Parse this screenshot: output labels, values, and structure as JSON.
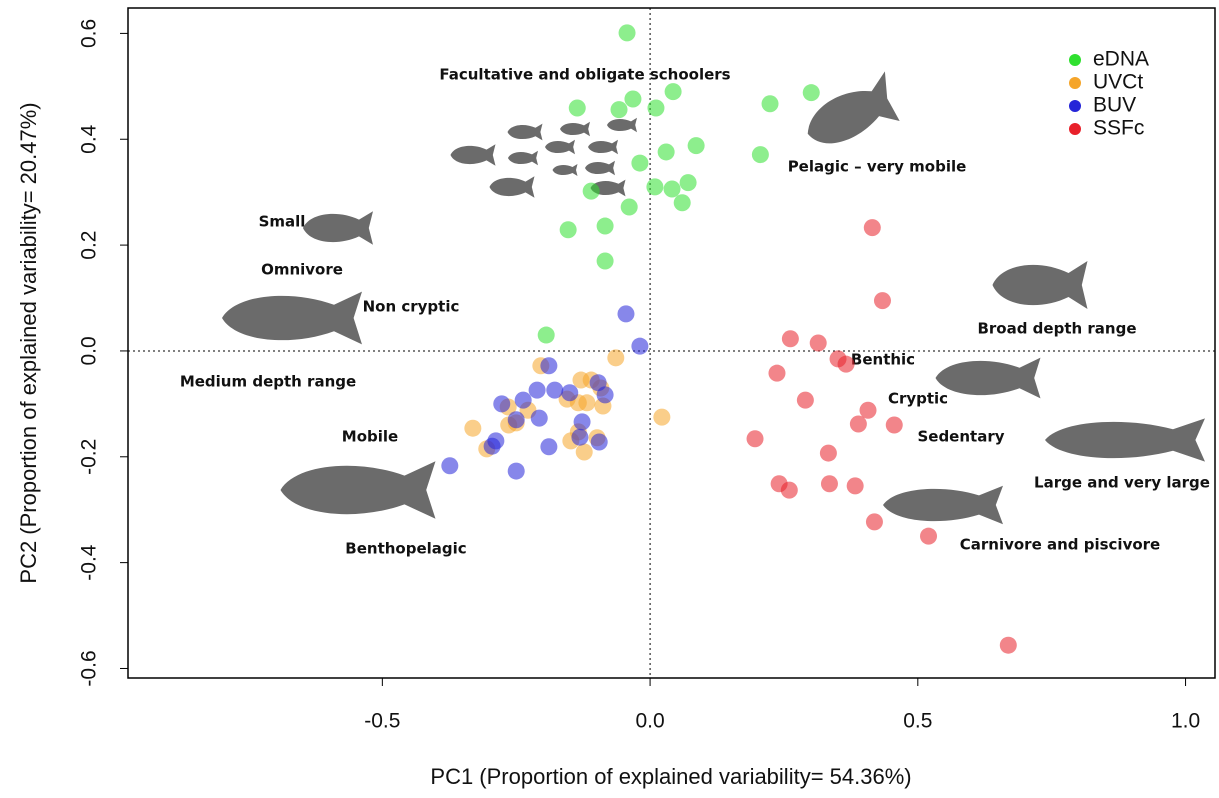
{
  "chart_data": {
    "type": "scatter",
    "x_label": "PC1 (Proportion of explained variability= 54.36%)",
    "y_label": "PC2 (Proportion of explained variability= 20.47%)",
    "xlim": [
      -0.975,
      1.055
    ],
    "ylim": [
      -0.618,
      0.648
    ],
    "xticks": [
      -0.5,
      {
        "value": 0,
        "label": "0.0"
      },
      0.5,
      {
        "value": 1,
        "label": "1.0"
      }
    ],
    "yticks": [
      0.6,
      0.4,
      0.2,
      {
        "value": 0,
        "label": "0.0"
      },
      -0.2,
      -0.4,
      -0.6
    ],
    "reference_lines": {
      "x": 0,
      "y": 0
    },
    "legend": "top-right",
    "annotations": [
      "Facultative and obligate schoolers",
      "Pelagic – very mobile",
      "Small",
      "Omnivore",
      "Non cryptic",
      "Broad depth range",
      "Benthic",
      "Medium depth range",
      "Cryptic",
      "Sedentary",
      "Mobile",
      "Large and very large",
      "Benthopelagic",
      "Carnivore and piscivore"
    ],
    "series": [
      {
        "name": "eDNA",
        "color": "#2fe02f",
        "x": [
          -0.043,
          -0.136,
          -0.058,
          -0.032,
          0.043,
          0.011,
          0.224,
          0.301,
          0.03,
          0.086,
          0.206,
          -0.019,
          -0.11,
          0.009,
          0.041,
          0.071,
          0.06,
          -0.039,
          -0.084,
          -0.153,
          -0.084,
          -0.194
        ],
        "values": [
          0.601,
          0.459,
          0.456,
          0.476,
          0.49,
          0.459,
          0.467,
          0.488,
          0.376,
          0.388,
          0.371,
          0.355,
          0.302,
          0.31,
          0.306,
          0.318,
          0.28,
          0.272,
          0.236,
          0.229,
          0.17,
          0.03
        ]
      },
      {
        "name": "UVCt",
        "color": "#f5a52a",
        "x": [
          -0.064,
          -0.204,
          -0.129,
          -0.11,
          -0.092,
          -0.155,
          -0.134,
          -0.118,
          -0.088,
          -0.265,
          -0.228,
          -0.25,
          0.022,
          -0.331,
          -0.305,
          -0.134,
          -0.148,
          -0.123,
          -0.099,
          -0.264
        ],
        "values": [
          -0.013,
          -0.028,
          -0.055,
          -0.055,
          -0.07,
          -0.091,
          -0.098,
          -0.098,
          -0.104,
          -0.106,
          -0.112,
          -0.136,
          -0.125,
          -0.146,
          -0.185,
          -0.153,
          -0.17,
          -0.191,
          -0.164,
          -0.14
        ]
      },
      {
        "name": "BUV",
        "color": "#2525d8",
        "x": [
          -0.045,
          -0.019,
          -0.189,
          -0.211,
          -0.178,
          -0.15,
          -0.097,
          -0.084,
          -0.277,
          -0.237,
          -0.25,
          -0.207,
          -0.127,
          -0.131,
          -0.095,
          -0.288,
          -0.295,
          -0.189,
          -0.25,
          -0.374
        ],
        "values": [
          0.07,
          0.009,
          -0.028,
          -0.074,
          -0.074,
          -0.079,
          -0.06,
          -0.083,
          -0.1,
          -0.093,
          -0.13,
          -0.127,
          -0.134,
          -0.163,
          -0.172,
          -0.17,
          -0.18,
          -0.181,
          -0.227,
          -0.217
        ]
      },
      {
        "name": "SSFc",
        "color": "#e8202a",
        "x": [
          0.415,
          0.434,
          0.262,
          0.314,
          0.351,
          0.366,
          0.237,
          0.29,
          0.407,
          0.389,
          0.456,
          0.196,
          0.333,
          0.241,
          0.26,
          0.335,
          0.383,
          0.419,
          0.52,
          0.669
        ],
        "values": [
          0.233,
          0.095,
          0.023,
          0.015,
          -0.015,
          -0.025,
          -0.042,
          -0.093,
          -0.112,
          -0.138,
          -0.14,
          -0.166,
          -0.193,
          -0.251,
          -0.263,
          -0.251,
          -0.255,
          -0.323,
          -0.35,
          -0.556
        ]
      }
    ]
  }
}
